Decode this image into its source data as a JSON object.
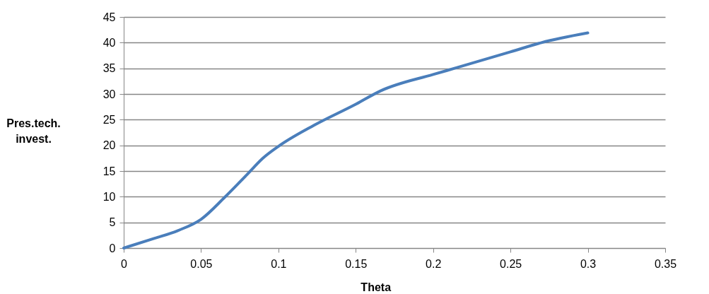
{
  "chart_data": {
    "type": "line",
    "xlabel": "Theta",
    "ylabel": "Pres.tech. invest.",
    "x": [
      0,
      0.02,
      0.035,
      0.05,
      0.065,
      0.08,
      0.09,
      0.1,
      0.123,
      0.15,
      0.166,
      0.2,
      0.215,
      0.25,
      0.27,
      0.3
    ],
    "series": [
      {
        "color": "#4a7ebb",
        "values": [
          0,
          1.9,
          3.4,
          5.6,
          9.8,
          14.4,
          17.5,
          19.8,
          23.9,
          28,
          30.6,
          33.8,
          35.1,
          38.2,
          40,
          41.9
        ]
      }
    ],
    "xlim": [
      0,
      0.35
    ],
    "xticks": [
      0,
      0.05,
      0.1,
      0.15,
      0.2,
      0.25,
      0.3,
      0.35
    ],
    "ylim": [
      0,
      45
    ],
    "yticks": [
      0,
      5,
      10,
      15,
      20,
      25,
      30,
      35,
      40,
      45
    ],
    "grid": "y",
    "legend": false,
    "marker": "none",
    "line_style": "solid"
  }
}
